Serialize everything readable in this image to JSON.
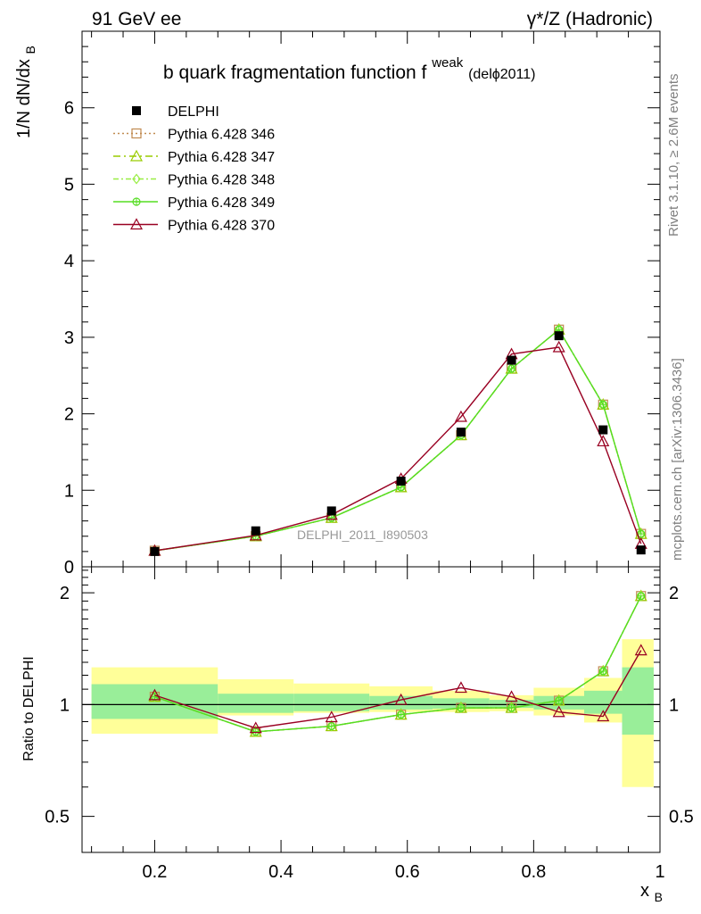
{
  "header": {
    "left_label": "91 GeV ee",
    "right_label": "γ*/Z (Hadronic)"
  },
  "side_labels": {
    "rivet": "Rivet 3.1.10, ≥ 2.6M events",
    "mcplots": "mcplots.cern.ch [arXiv:1306.3436]"
  },
  "chart_data": [
    {
      "type": "line",
      "title_main": "b quark fragmentation function f",
      "title_sup": "weak",
      "title_tail": " (delϕ2011)",
      "ylabel_main": "1/N dN/dx",
      "ylabel_sub": "B",
      "watermark": "DELPHI_2011_I890503",
      "xlim": [
        0.085,
        1.0
      ],
      "ylim": [
        0,
        7
      ],
      "xticks": [
        0.2,
        0.4,
        0.6,
        0.8,
        1
      ],
      "yticks": [
        0,
        1,
        2,
        3,
        4,
        5,
        6
      ],
      "ytick_labels": [
        "0",
        "1",
        "2",
        "3",
        "4",
        "5",
        "6"
      ],
      "legend_position": "top-left",
      "x": [
        0.2,
        0.36,
        0.48,
        0.59,
        0.685,
        0.765,
        0.84,
        0.91,
        0.97
      ],
      "reference": {
        "name": "DELPHI",
        "color": "#000000",
        "values": [
          0.2,
          0.47,
          0.73,
          1.12,
          1.76,
          2.7,
          3.02,
          1.79,
          0.22
        ]
      },
      "series": [
        {
          "name": "Pythia 6.428 346",
          "color": "#c08a50",
          "marker": "square-open",
          "dash": "2,3",
          "values": [
            0.21,
            0.4,
            0.64,
            1.04,
            1.72,
            2.59,
            3.1,
            2.12,
            0.43
          ]
        },
        {
          "name": "Pythia 6.428 347",
          "color": "#99cc00",
          "marker": "triangle-open",
          "dash": "8,4,2,4",
          "values": [
            0.21,
            0.4,
            0.64,
            1.04,
            1.72,
            2.59,
            3.1,
            2.12,
            0.43
          ]
        },
        {
          "name": "Pythia 6.428 348",
          "color": "#99ee44",
          "marker": "diamond-open",
          "dash": "6,3,2,3",
          "values": [
            0.21,
            0.4,
            0.64,
            1.04,
            1.72,
            2.59,
            3.1,
            2.12,
            0.43
          ]
        },
        {
          "name": "Pythia 6.428 349",
          "color": "#55dd22",
          "marker": "circle-cross",
          "dash": "",
          "values": [
            0.21,
            0.4,
            0.64,
            1.04,
            1.72,
            2.59,
            3.1,
            2.12,
            0.43
          ]
        },
        {
          "name": "Pythia 6.428 370",
          "color": "#990022",
          "marker": "triangle-open",
          "dash": "",
          "values": [
            0.21,
            0.41,
            0.68,
            1.15,
            1.96,
            2.78,
            2.87,
            1.64,
            0.3
          ]
        }
      ]
    },
    {
      "type": "line",
      "ylabel": "Ratio to DELPHI",
      "xlabel_main": "x",
      "xlabel_sub": "B",
      "xlim": [
        0.085,
        1.0
      ],
      "ylim": [
        0.4,
        2.35
      ],
      "yscale": "log",
      "yticks_labeled": [
        0.5,
        1,
        2
      ],
      "ytick_labels": [
        "0.5",
        "1",
        "2"
      ],
      "xticks": [
        0.2,
        0.4,
        0.6,
        0.8,
        1
      ],
      "xtick_labels": [
        "0.2",
        "0.4",
        "0.6",
        "0.8",
        "1"
      ],
      "reference_line": 1,
      "bands": [
        {
          "x_lo": 0.1,
          "x_hi": 0.3,
          "stat_lo": 0.915,
          "stat_hi": 1.135,
          "tot_lo": 0.835,
          "tot_hi": 1.26
        },
        {
          "x_lo": 0.3,
          "x_hi": 0.42,
          "stat_lo": 0.95,
          "stat_hi": 1.07,
          "tot_lo": 0.935,
          "tot_hi": 1.17
        },
        {
          "x_lo": 0.42,
          "x_hi": 0.54,
          "stat_lo": 0.96,
          "stat_hi": 1.07,
          "tot_lo": 0.95,
          "tot_hi": 1.14
        },
        {
          "x_lo": 0.54,
          "x_hi": 0.64,
          "stat_lo": 0.97,
          "stat_hi": 1.055,
          "tot_lo": 0.955,
          "tot_hi": 1.12
        },
        {
          "x_lo": 0.64,
          "x_hi": 0.73,
          "stat_lo": 0.975,
          "stat_hi": 1.04,
          "tot_lo": 0.955,
          "tot_hi": 1.09
        },
        {
          "x_lo": 0.73,
          "x_hi": 0.8,
          "stat_lo": 0.98,
          "stat_hi": 1.03,
          "tot_lo": 0.96,
          "tot_hi": 1.06
        },
        {
          "x_lo": 0.8,
          "x_hi": 0.88,
          "stat_lo": 0.97,
          "stat_hi": 1.055,
          "tot_lo": 0.935,
          "tot_hi": 1.11
        },
        {
          "x_lo": 0.88,
          "x_hi": 0.94,
          "stat_lo": 0.945,
          "stat_hi": 1.09,
          "tot_lo": 0.895,
          "tot_hi": 1.18
        },
        {
          "x_lo": 0.94,
          "x_hi": 0.99,
          "stat_lo": 0.83,
          "stat_hi": 1.26,
          "tot_lo": 0.6,
          "tot_hi": 1.5
        }
      ],
      "x": [
        0.2,
        0.36,
        0.48,
        0.59,
        0.685,
        0.765,
        0.84,
        0.91,
        0.97
      ],
      "series": [
        {
          "name": "Pythia 6.428 346",
          "color": "#c08a50",
          "marker": "square-open",
          "dash": "2,3",
          "values": [
            1.05,
            0.845,
            0.875,
            0.94,
            0.98,
            0.98,
            1.025,
            1.23,
            1.96
          ]
        },
        {
          "name": "Pythia 6.428 347",
          "color": "#99cc00",
          "marker": "triangle-open",
          "dash": "8,4,2,4",
          "values": [
            1.05,
            0.845,
            0.875,
            0.94,
            0.98,
            0.98,
            1.025,
            1.23,
            1.96
          ]
        },
        {
          "name": "Pythia 6.428 348",
          "color": "#99ee44",
          "marker": "diamond-open",
          "dash": "6,3,2,3",
          "values": [
            1.05,
            0.845,
            0.875,
            0.94,
            0.98,
            0.98,
            1.025,
            1.23,
            1.96
          ]
        },
        {
          "name": "Pythia 6.428 349",
          "color": "#55dd22",
          "marker": "circle-cross",
          "dash": "",
          "values": [
            1.05,
            0.845,
            0.875,
            0.94,
            0.98,
            0.98,
            1.025,
            1.23,
            1.96
          ]
        },
        {
          "name": "Pythia 6.428 370",
          "color": "#990022",
          "marker": "triangle-open",
          "dash": "",
          "values": [
            1.06,
            0.865,
            0.925,
            1.03,
            1.11,
            1.05,
            0.955,
            0.93,
            1.4
          ]
        }
      ]
    }
  ]
}
